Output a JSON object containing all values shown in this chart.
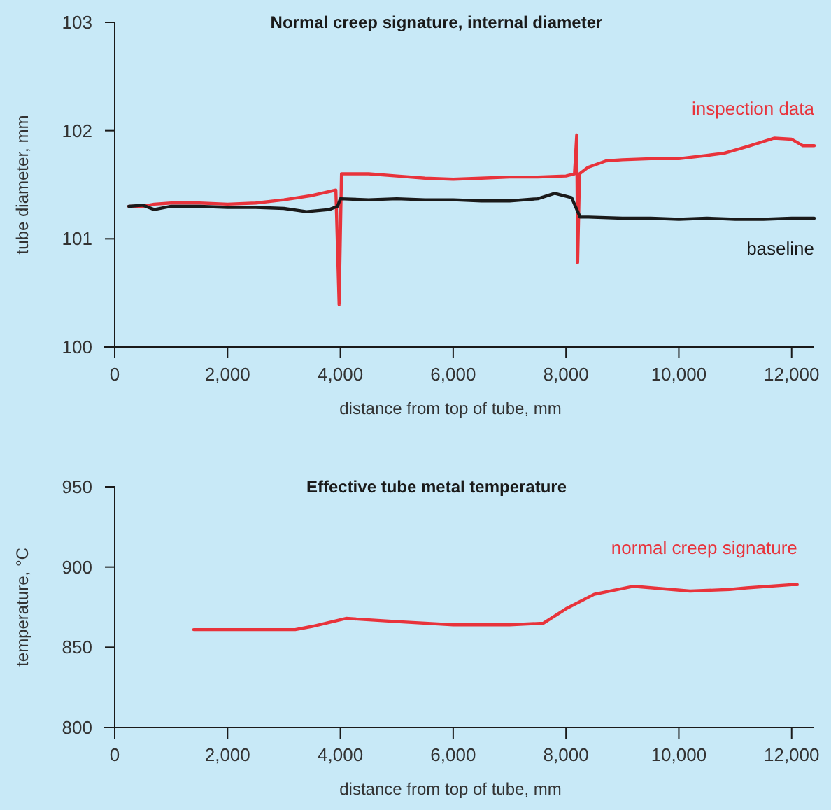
{
  "chart_data": [
    {
      "type": "line",
      "title": "Normal creep signature, internal diameter",
      "xlabel": "distance from top of tube, mm",
      "ylabel": "tube diameter, mm",
      "xlim": [
        0,
        12400
      ],
      "ylim": [
        100,
        103
      ],
      "xticks": [
        0,
        {
          "value": 2000,
          "label": "2,000"
        },
        {
          "value": 4000,
          "label": "4,000"
        },
        {
          "value": 6000,
          "label": "6,000"
        },
        {
          "value": 8000,
          "label": "8,000"
        },
        {
          "value": 10000,
          "label": "10,000"
        },
        {
          "value": 12000,
          "label": "12,000"
        }
      ],
      "yticks": [
        100,
        101,
        102,
        103
      ],
      "series": [
        {
          "name": "inspection data",
          "color": "#e8333b",
          "x": [
            250,
            500,
            700,
            1000,
            1500,
            2000,
            2500,
            3000,
            3500,
            3920,
            3978,
            4020,
            4500,
            5000,
            5500,
            6000,
            6500,
            7000,
            7500,
            8000,
            8150,
            8190,
            8206,
            8240,
            8390,
            8710,
            9000,
            9500,
            10000,
            10500,
            10800,
            11200,
            11690,
            12000,
            12200,
            12400
          ],
          "values": [
            101.3,
            101.3,
            101.32,
            101.33,
            101.33,
            101.32,
            101.33,
            101.36,
            101.4,
            101.45,
            100.39,
            101.6,
            101.6,
            101.58,
            101.56,
            101.55,
            101.56,
            101.57,
            101.57,
            101.58,
            101.6,
            101.96,
            100.78,
            101.6,
            101.66,
            101.72,
            101.73,
            101.74,
            101.74,
            101.77,
            101.79,
            101.85,
            101.93,
            101.92,
            101.86,
            101.86
          ]
        },
        {
          "name": "baseline",
          "color": "#1a1a1a",
          "x": [
            250,
            500,
            700,
            1000,
            1500,
            2000,
            2500,
            3000,
            3400,
            3800,
            3950,
            4000,
            4500,
            5000,
            5500,
            6000,
            6500,
            7000,
            7500,
            7800,
            8100,
            8250,
            8400,
            9000,
            9500,
            10000,
            10500,
            11000,
            11500,
            12000,
            12400
          ],
          "values": [
            101.3,
            101.31,
            101.27,
            101.3,
            101.3,
            101.29,
            101.29,
            101.28,
            101.25,
            101.27,
            101.3,
            101.37,
            101.36,
            101.37,
            101.36,
            101.36,
            101.35,
            101.35,
            101.37,
            101.42,
            101.38,
            101.2,
            101.2,
            101.19,
            101.19,
            101.18,
            101.19,
            101.18,
            101.18,
            101.19,
            101.19
          ]
        }
      ]
    },
    {
      "type": "line",
      "title": "Effective tube metal temperature",
      "xlabel": "distance from top of tube, mm",
      "ylabel": "temperature, °C",
      "xlim": [
        0,
        12400
      ],
      "ylim": [
        800,
        950
      ],
      "xticks": [
        0,
        {
          "value": 2000,
          "label": "2,000"
        },
        {
          "value": 4000,
          "label": "4,000"
        },
        {
          "value": 6000,
          "label": "6,000"
        },
        {
          "value": 8000,
          "label": "8,000"
        },
        {
          "value": 10000,
          "label": "10,000"
        },
        {
          "value": 12000,
          "label": "12,000"
        }
      ],
      "yticks": [
        800,
        850,
        900,
        950
      ],
      "series": [
        {
          "name": "normal creep signature",
          "color": "#e8333b",
          "x": [
            1400,
            2000,
            2500,
            3200,
            3500,
            4100,
            5000,
            6000,
            7000,
            7600,
            8000,
            8500,
            9200,
            10200,
            10900,
            11200,
            12000,
            12100
          ],
          "values": [
            861,
            861,
            861,
            861,
            863,
            868,
            866,
            864,
            864,
            865,
            874,
            883,
            888,
            885,
            886,
            887,
            889,
            889
          ]
        }
      ]
    }
  ]
}
